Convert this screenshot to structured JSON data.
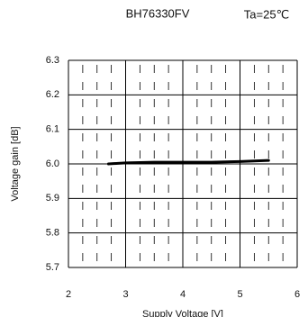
{
  "chart_data": {
    "type": "line",
    "title": "BH76330FV",
    "annotation": "Ta=25℃",
    "xlabel": "Supply Voltage [V]",
    "ylabel": "Voltage gain [dB]",
    "xlim": [
      2,
      6
    ],
    "xticks": [
      2,
      3,
      4,
      5,
      6
    ],
    "ylim": [
      5.7,
      6.3
    ],
    "yticks": [
      5.7,
      5.8,
      5.9,
      {
        "value": 6,
        "label": "6.0"
      },
      6.1,
      6.2,
      6.3
    ],
    "grid": true,
    "series": [
      {
        "color": "#000000",
        "x": [
          2.7,
          3,
          3.5,
          4,
          4.5,
          5,
          5.5
        ],
        "values": [
          6.0,
          6.003,
          6.005,
          6.005,
          6.005,
          6.007,
          6.01
        ]
      }
    ]
  }
}
